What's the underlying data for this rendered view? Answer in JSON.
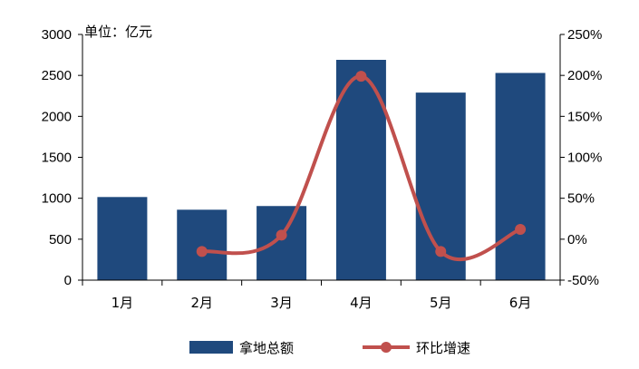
{
  "chart_data": {
    "type": "bar",
    "categories": [
      "1月",
      "2月",
      "3月",
      "4月",
      "5月",
      "6月"
    ],
    "unit_label": "单位：亿元",
    "series": [
      {
        "name": "拿地总额",
        "type": "bar",
        "axis": "left",
        "values": [
          1015,
          860,
          905,
          2690,
          2290,
          2530
        ],
        "color": "#1f497d"
      },
      {
        "name": "环比增速",
        "type": "line",
        "axis": "right",
        "values": [
          null,
          -15,
          5,
          199,
          -15,
          12
        ],
        "unit": "%",
        "color": "#c0504d"
      }
    ],
    "y_left": {
      "min": 0,
      "max": 3000,
      "ticks": [
        0,
        500,
        1000,
        1500,
        2000,
        2500,
        3000
      ]
    },
    "y_right": {
      "min": -50,
      "max": 250,
      "ticks": [
        -50,
        0,
        50,
        100,
        150,
        200,
        250
      ],
      "tick_labels": [
        "-50%",
        "0%",
        "50%",
        "100%",
        "150%",
        "200%",
        "250%"
      ]
    },
    "legend": {
      "position": "bottom"
    },
    "grid": false
  }
}
